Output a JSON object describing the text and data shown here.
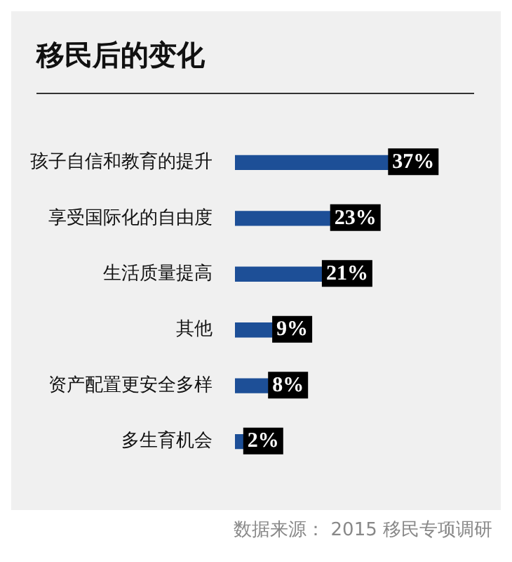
{
  "chart_data": {
    "type": "bar",
    "orientation": "horizontal",
    "title": "移民后的变化",
    "categories": [
      "孩子自信和教育的提升",
      "享受国际化的自由度",
      "生活质量提高",
      "其他",
      "资产配置更安全多样",
      "多生育机会"
    ],
    "values": [
      37,
      23,
      21,
      9,
      8,
      2
    ],
    "value_labels": [
      "37%",
      "23%",
      "21%",
      "9%",
      "8%",
      "2%"
    ],
    "color": "#1d4f97",
    "xlim": [
      0,
      50
    ],
    "tick_labels": "y",
    "legend": false,
    "annotations": [
      "数据来源： 2015 移民专项调研"
    ]
  }
}
